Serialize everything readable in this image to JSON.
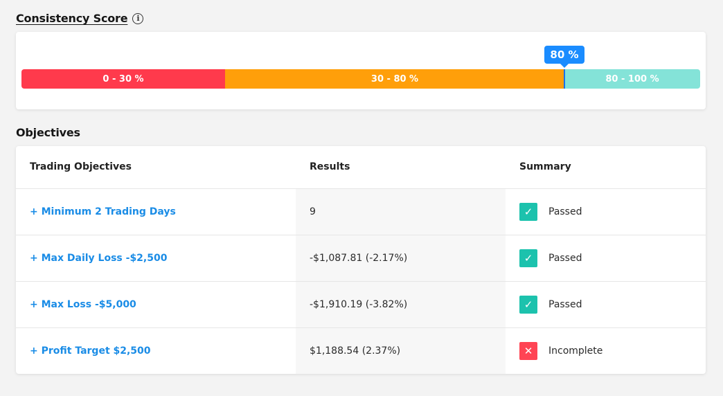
{
  "consistency": {
    "title": "Consistency Score",
    "info_icon": "info-icon",
    "current_value": 80,
    "current_label": "80 %",
    "segments": [
      {
        "label": "0 - 30 %",
        "from": 0,
        "to": 30,
        "color": "#ff3a4c"
      },
      {
        "label": "30 - 80 %",
        "from": 30,
        "to": 80,
        "color": "#ff9f0a"
      },
      {
        "label": "80 - 100 %",
        "from": 80,
        "to": 100,
        "color": "#84e3d8"
      }
    ]
  },
  "objectives": {
    "title": "Objectives",
    "columns": [
      "Trading Objectives",
      "Results",
      "Summary"
    ],
    "rows": [
      {
        "objective": "+ Minimum 2 Trading Days",
        "result": "9",
        "status": "pass",
        "summary": "Passed",
        "icon": "check-icon"
      },
      {
        "objective": "+ Max Daily Loss -$2,500",
        "result": "-$1,087.81 (-2.17%)",
        "status": "pass",
        "summary": "Passed",
        "icon": "check-icon"
      },
      {
        "objective": "+ Max Loss -$5,000",
        "result": "-$1,910.19 (-3.82%)",
        "status": "pass",
        "summary": "Passed",
        "icon": "check-icon"
      },
      {
        "objective": "+ Profit Target $2,500",
        "result": "$1,188.54 (2.37%)",
        "status": "fail",
        "summary": "Incomplete",
        "icon": "close-icon"
      }
    ]
  },
  "colors": {
    "link": "#1a8ce6",
    "marker": "#1a8cff",
    "pass": "#1cc2ad",
    "fail": "#ff4454"
  }
}
